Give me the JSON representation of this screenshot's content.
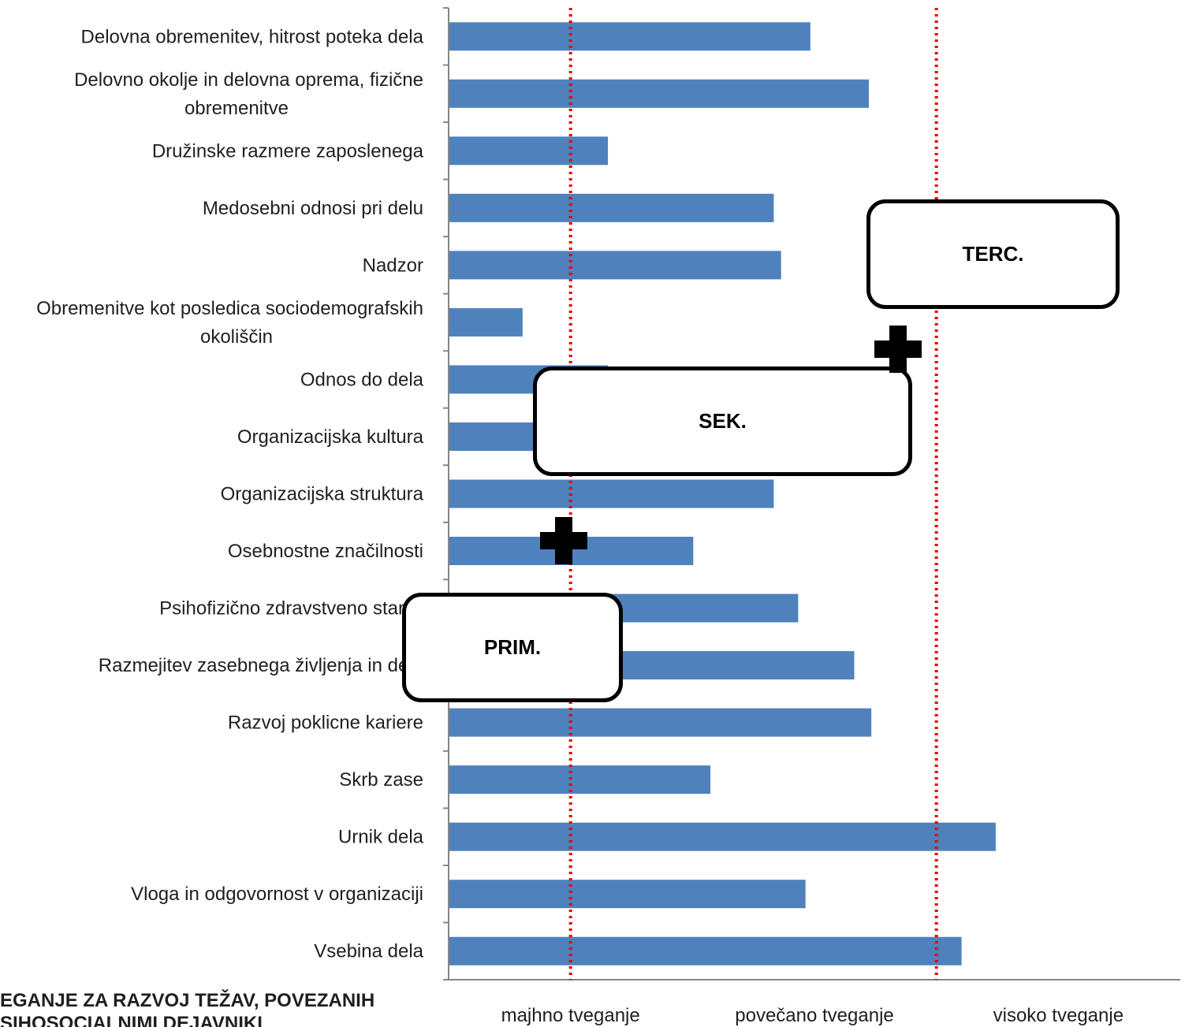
{
  "chart_data": {
    "type": "bar",
    "orientation": "horizontal",
    "categories": [
      "Delovna obremenitev,  hitrost poteka  dela",
      "Delovno okolje in delovna oprema, fizične|obremenitve",
      "Družinske razmere zaposlenega",
      "Medosebni odnosi  pri delu",
      "Nadzor",
      "Obremenitve kot posledica sociodemografskih|okoliščin",
      "Odnos do dela",
      "Organizacijska kultura",
      "Organizacijska struktura",
      "Osebnostne značilnosti",
      "Psihofizično zdravstveno stanje",
      "Razmejitev zasebnega življenja in dela",
      "Razvoj poklicne kariere",
      "Skrb zase",
      "Urnik dela",
      "Vloga in odgovornost  v organizaciji",
      "Vsebina dela"
    ],
    "values": [
      1.48,
      1.72,
      0.65,
      1.33,
      1.36,
      0.3,
      0.65,
      0.65,
      1.33,
      1.0,
      1.43,
      1.66,
      1.73,
      1.07,
      2.24,
      1.46,
      2.1
    ],
    "xlim": [
      0,
      3
    ],
    "x_tick_labels": [
      "majhno tveganje",
      "povečano tveganje",
      "visoko tveganje"
    ],
    "thresholds": [
      0.5,
      2.0
    ],
    "bar_color": "#4f81bd",
    "threshold_color": "#e00000",
    "bottom_title_lines": [
      "EGANJE ZA RAZVOJ TEŽAV, POVEZANIH",
      "SIHOSOCIALNIMI DEJAVNIKI"
    ]
  },
  "overlays": {
    "boxes": [
      {
        "id": "prim",
        "label": "PRIM."
      },
      {
        "id": "sek",
        "label": "SEK."
      },
      {
        "id": "terc",
        "label": "TERC."
      }
    ],
    "plus_icon": "plus-icon"
  }
}
